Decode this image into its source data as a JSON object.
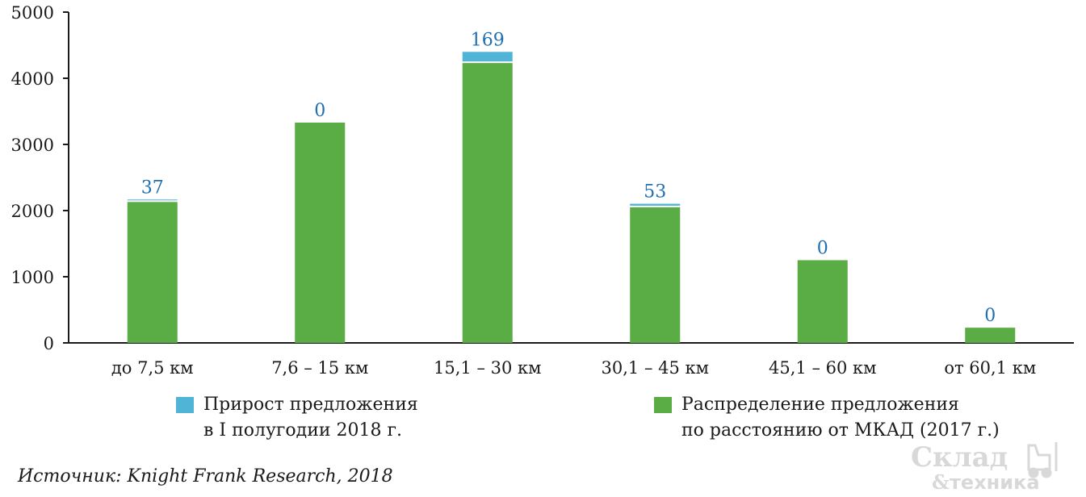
{
  "chart_data": {
    "type": "bar",
    "stacked": true,
    "categories": [
      "до 7,5 км",
      "7,6 – 15 км",
      "15,1 – 30 км",
      "30,1 – 45 км",
      "45,1 – 60 км",
      "от 60,1 км"
    ],
    "series": [
      {
        "name": "Распределение предложения по расстоянию от МКАД (2017 г.)",
        "name_lines": [
          "Распределение предложения",
          "по расстоянию от МКАД (2017 г.)"
        ],
        "color": "#5aac44",
        "values": [
          2130,
          3330,
          4230,
          2050,
          1250,
          230
        ]
      },
      {
        "name": "Прирост предложения в I полугодии 2018 г.",
        "name_lines": [
          "Прирост предложения",
          "в I полугодии 2018 г."
        ],
        "color": "#4fb4d6",
        "values": [
          37,
          0,
          169,
          53,
          0,
          0
        ]
      }
    ],
    "data_labels": [
      "37",
      "0",
      "169",
      "53",
      "0",
      "0"
    ],
    "data_label_color": "#1f6fb2",
    "ylim": [
      0,
      5000
    ],
    "yticks": [
      "0",
      "1000",
      "2000",
      "3000",
      "4000",
      "5000"
    ],
    "grid": false,
    "legend_position": "bottom"
  },
  "source": "Источник: Knight Frank Research, 2018",
  "watermark": {
    "line1": "Склад",
    "amp": "&",
    "line2": "техника"
  }
}
